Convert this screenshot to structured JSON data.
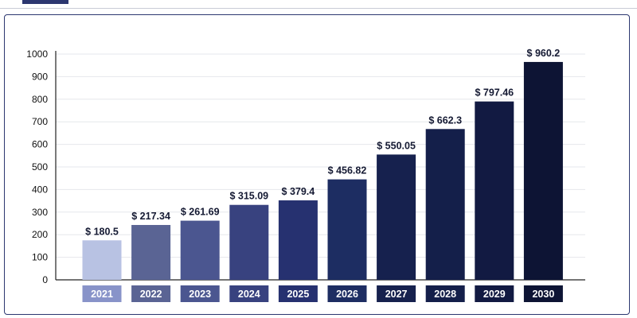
{
  "chart_data": {
    "type": "bar",
    "title": "",
    "xlabel": "",
    "ylabel": "",
    "categories": [
      "2021",
      "2022",
      "2023",
      "2024",
      "2025",
      "2026",
      "2027",
      "2028",
      "2029",
      "2030"
    ],
    "series": [
      {
        "values": [
          180.5,
          217.34,
          261.69,
          315.09,
          379.4,
          456.82,
          550.05,
          662.3,
          797.46,
          960.2
        ],
        "display_values": [
          175,
          243,
          262,
          332,
          352,
          445,
          555,
          668,
          790,
          965
        ],
        "labels": [
          "$ 180.5",
          "$ 217.34",
          "$ 261.69",
          "$ 315.09",
          "$ 379.4",
          "$ 456.82",
          "$ 550.05",
          "$ 662.3",
          "$ 797.46",
          "$ 960.2"
        ]
      }
    ],
    "yticks": [
      "0",
      "100",
      "200",
      "300",
      "400",
      "500",
      "600",
      "700",
      "800",
      "900",
      "1000"
    ],
    "ylim": [
      0,
      1000
    ],
    "grid": true,
    "legend": "none",
    "colors": [
      "#b8c2e3",
      "#5a6494",
      "#4b5690",
      "#38427f",
      "#263170",
      "#1d2d62",
      "#16214e",
      "#141f4a",
      "#121a42",
      "#0d1434"
    ],
    "label_box_colors": [
      "#8893c9",
      "#5a6494",
      "#4b5690",
      "#38427f",
      "#263170",
      "#1d2d62",
      "#16214e",
      "#141f4a",
      "#121a42",
      "#0d1434"
    ]
  }
}
